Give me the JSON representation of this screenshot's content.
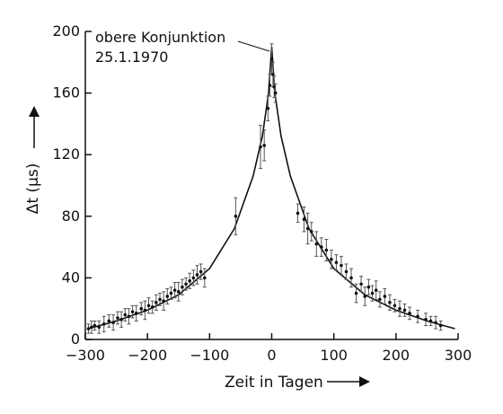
{
  "chart_data": {
    "type": "scatter",
    "title": "",
    "xlabel": "Zeit in Tagen",
    "ylabel": "Δt (µs)",
    "xlim": [
      -300,
      300
    ],
    "ylim": [
      0,
      200
    ],
    "xticks": [
      -300,
      -200,
      -100,
      0,
      100,
      200,
      300
    ],
    "yticks": [
      0,
      40,
      80,
      120,
      160,
      200
    ],
    "xtick_labels": [
      "−300",
      "−200",
      "−100",
      "0",
      "100",
      "200",
      "300"
    ],
    "ytick_labels": [
      "0",
      "40",
      "80",
      "120",
      "160",
      "200"
    ],
    "grid": false,
    "legend": "none",
    "annotations": [
      {
        "text_lines": [
          "obere Konjunktion",
          "25.1.1970"
        ],
        "x": 0,
        "y": 188
      }
    ],
    "series": [
      {
        "type": "scatter-errorbars",
        "points": [
          {
            "x": -295,
            "y": 7,
            "err": 3
          },
          {
            "x": -290,
            "y": 8,
            "err": 4
          },
          {
            "x": -285,
            "y": 9,
            "err": 3
          },
          {
            "x": -278,
            "y": 8,
            "err": 4
          },
          {
            "x": -270,
            "y": 10,
            "err": 5
          },
          {
            "x": -262,
            "y": 12,
            "err": 4
          },
          {
            "x": -255,
            "y": 11,
            "err": 5
          },
          {
            "x": -248,
            "y": 14,
            "err": 4
          },
          {
            "x": -242,
            "y": 13,
            "err": 5
          },
          {
            "x": -236,
            "y": 16,
            "err": 4
          },
          {
            "x": -230,
            "y": 15,
            "err": 5
          },
          {
            "x": -224,
            "y": 18,
            "err": 4
          },
          {
            "x": -218,
            "y": 17,
            "err": 5
          },
          {
            "x": -210,
            "y": 20,
            "err": 4
          },
          {
            "x": -204,
            "y": 19,
            "err": 6
          },
          {
            "x": -198,
            "y": 22,
            "err": 5
          },
          {
            "x": -192,
            "y": 21,
            "err": 4
          },
          {
            "x": -186,
            "y": 24,
            "err": 5
          },
          {
            "x": -180,
            "y": 26,
            "err": 4
          },
          {
            "x": -174,
            "y": 25,
            "err": 6
          },
          {
            "x": -168,
            "y": 28,
            "err": 5
          },
          {
            "x": -162,
            "y": 30,
            "err": 4
          },
          {
            "x": -156,
            "y": 32,
            "err": 5
          },
          {
            "x": -150,
            "y": 31,
            "err": 6
          },
          {
            "x": -144,
            "y": 34,
            "err": 5
          },
          {
            "x": -138,
            "y": 36,
            "err": 4
          },
          {
            "x": -132,
            "y": 38,
            "err": 5
          },
          {
            "x": -126,
            "y": 40,
            "err": 5
          },
          {
            "x": -120,
            "y": 42,
            "err": 6
          },
          {
            "x": -114,
            "y": 44,
            "err": 5
          },
          {
            "x": -108,
            "y": 40,
            "err": 6
          },
          {
            "x": -58,
            "y": 80,
            "err": 12
          },
          {
            "x": -18,
            "y": 125,
            "err": 14
          },
          {
            "x": -12,
            "y": 126,
            "err": 10
          },
          {
            "x": -6,
            "y": 150,
            "err": 8
          },
          {
            "x": -3,
            "y": 165,
            "err": 7
          },
          {
            "x": 0,
            "y": 182,
            "err": 10
          },
          {
            "x": 2,
            "y": 172,
            "err": 8
          },
          {
            "x": 4,
            "y": 164,
            "err": 7
          },
          {
            "x": 6,
            "y": 160,
            "err": 6
          },
          {
            "x": 42,
            "y": 82,
            "err": 6
          },
          {
            "x": 52,
            "y": 78,
            "err": 8
          },
          {
            "x": 58,
            "y": 72,
            "err": 10
          },
          {
            "x": 64,
            "y": 70,
            "err": 6
          },
          {
            "x": 72,
            "y": 62,
            "err": 8
          },
          {
            "x": 80,
            "y": 60,
            "err": 6
          },
          {
            "x": 88,
            "y": 58,
            "err": 7
          },
          {
            "x": 96,
            "y": 52,
            "err": 6
          },
          {
            "x": 104,
            "y": 50,
            "err": 5
          },
          {
            "x": 112,
            "y": 48,
            "err": 6
          },
          {
            "x": 120,
            "y": 44,
            "err": 5
          },
          {
            "x": 128,
            "y": 40,
            "err": 6
          },
          {
            "x": 136,
            "y": 30,
            "err": 6
          },
          {
            "x": 144,
            "y": 36,
            "err": 5
          },
          {
            "x": 150,
            "y": 28,
            "err": 6
          },
          {
            "x": 156,
            "y": 34,
            "err": 5
          },
          {
            "x": 162,
            "y": 30,
            "err": 5
          },
          {
            "x": 168,
            "y": 32,
            "err": 6
          },
          {
            "x": 174,
            "y": 26,
            "err": 5
          },
          {
            "x": 182,
            "y": 28,
            "err": 5
          },
          {
            "x": 190,
            "y": 24,
            "err": 5
          },
          {
            "x": 198,
            "y": 22,
            "err": 4
          },
          {
            "x": 206,
            "y": 20,
            "err": 5
          },
          {
            "x": 214,
            "y": 19,
            "err": 4
          },
          {
            "x": 222,
            "y": 17,
            "err": 4
          },
          {
            "x": 235,
            "y": 15,
            "err": 4
          },
          {
            "x": 248,
            "y": 13,
            "err": 4
          },
          {
            "x": 256,
            "y": 12,
            "err": 3
          },
          {
            "x": 264,
            "y": 11,
            "err": 4
          },
          {
            "x": 272,
            "y": 9,
            "err": 3
          }
        ]
      },
      {
        "type": "line",
        "points": [
          {
            "x": -295,
            "y": 7
          },
          {
            "x": -250,
            "y": 12
          },
          {
            "x": -200,
            "y": 19
          },
          {
            "x": -150,
            "y": 29
          },
          {
            "x": -100,
            "y": 46
          },
          {
            "x": -60,
            "y": 72
          },
          {
            "x": -30,
            "y": 106
          },
          {
            "x": -15,
            "y": 132
          },
          {
            "x": -5,
            "y": 160
          },
          {
            "x": 0,
            "y": 190
          },
          {
            "x": 5,
            "y": 160
          },
          {
            "x": 15,
            "y": 132
          },
          {
            "x": 30,
            "y": 106
          },
          {
            "x": 60,
            "y": 72
          },
          {
            "x": 100,
            "y": 46
          },
          {
            "x": 150,
            "y": 29
          },
          {
            "x": 200,
            "y": 19
          },
          {
            "x": 250,
            "y": 12
          },
          {
            "x": 295,
            "y": 7
          }
        ]
      }
    ]
  }
}
